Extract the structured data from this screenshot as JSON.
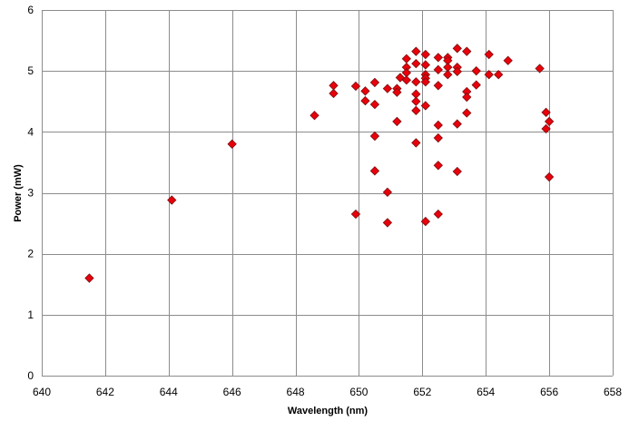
{
  "chart_data": {
    "type": "scatter",
    "title": "",
    "xlabel": "Wavelength (nm)",
    "ylabel": "Power (mW)",
    "xlim": [
      640,
      658
    ],
    "ylim": [
      0,
      6
    ],
    "x_ticks": [
      640,
      642,
      644,
      646,
      648,
      650,
      652,
      654,
      656,
      658
    ],
    "y_ticks": [
      0,
      1,
      2,
      3,
      4,
      5,
      6
    ],
    "grid": true,
    "legend": "none",
    "marker": "diamond",
    "marker_fill": "#e8000b",
    "marker_stroke": "#7b1010",
    "grid_color": "#8c8c8c",
    "series": [
      {
        "points": [
          [
            641.5,
            1.6
          ],
          [
            644.1,
            2.88
          ],
          [
            646.0,
            3.8
          ],
          [
            648.6,
            4.27
          ],
          [
            649.2,
            4.76
          ],
          [
            649.2,
            4.63
          ],
          [
            649.9,
            4.75
          ],
          [
            649.9,
            2.65
          ],
          [
            650.2,
            4.67
          ],
          [
            650.2,
            4.51
          ],
          [
            650.5,
            4.81
          ],
          [
            650.5,
            4.45
          ],
          [
            650.5,
            3.93
          ],
          [
            650.5,
            3.36
          ],
          [
            650.9,
            4.71
          ],
          [
            650.9,
            3.01
          ],
          [
            650.9,
            2.51
          ],
          [
            651.2,
            4.71
          ],
          [
            651.2,
            4.65
          ],
          [
            651.2,
            4.17
          ],
          [
            651.3,
            4.89
          ],
          [
            651.5,
            5.2
          ],
          [
            651.5,
            5.06
          ],
          [
            651.5,
            4.97
          ],
          [
            651.5,
            4.85
          ],
          [
            651.8,
            5.32
          ],
          [
            651.8,
            5.12
          ],
          [
            651.8,
            4.82
          ],
          [
            651.8,
            4.62
          ],
          [
            651.8,
            4.5
          ],
          [
            651.8,
            4.35
          ],
          [
            651.8,
            3.82
          ],
          [
            652.1,
            5.27
          ],
          [
            652.1,
            5.1
          ],
          [
            652.1,
            4.94
          ],
          [
            652.1,
            4.88
          ],
          [
            652.1,
            4.82
          ],
          [
            652.1,
            4.43
          ],
          [
            652.1,
            2.53
          ],
          [
            652.5,
            5.22
          ],
          [
            652.5,
            5.02
          ],
          [
            652.5,
            4.76
          ],
          [
            652.5,
            4.11
          ],
          [
            652.5,
            3.9
          ],
          [
            652.5,
            3.45
          ],
          [
            652.5,
            2.65
          ],
          [
            652.8,
            5.22
          ],
          [
            652.8,
            5.17
          ],
          [
            652.8,
            5.06
          ],
          [
            652.8,
            4.94
          ],
          [
            653.1,
            5.37
          ],
          [
            653.1,
            5.06
          ],
          [
            653.1,
            4.99
          ],
          [
            653.1,
            4.13
          ],
          [
            653.1,
            3.35
          ],
          [
            653.4,
            5.32
          ],
          [
            653.4,
            4.66
          ],
          [
            653.4,
            4.57
          ],
          [
            653.4,
            4.31
          ],
          [
            653.7,
            5.0
          ],
          [
            653.7,
            4.77
          ],
          [
            654.1,
            5.27
          ],
          [
            654.1,
            4.94
          ],
          [
            654.4,
            4.94
          ],
          [
            654.7,
            5.17
          ],
          [
            655.7,
            5.04
          ],
          [
            655.9,
            4.32
          ],
          [
            655.9,
            4.05
          ],
          [
            656.0,
            4.17
          ],
          [
            656.0,
            3.26
          ]
        ]
      }
    ]
  }
}
